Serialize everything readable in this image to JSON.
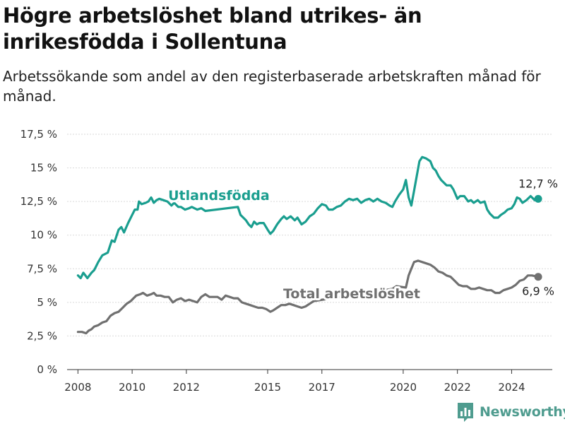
{
  "header": {
    "title": "Högre arbetslöshet bland utrikes- än inrikesfödda i Sollentuna",
    "subtitle": "Arbetssökande som andel av den registerbaserade arbetskraften månad för månad."
  },
  "brand": {
    "name": "Newsworthy",
    "icon": "bar-chart-logo-icon",
    "color": "#4f9c8f"
  },
  "chart_data": {
    "type": "line",
    "xlim": [
      2007.6,
      2025.5
    ],
    "ylim": [
      0,
      17.5
    ],
    "x_ticks": [
      {
        "value": 2008,
        "label": "2008"
      },
      {
        "value": 2010,
        "label": "2010"
      },
      {
        "value": 2012,
        "label": "2012"
      },
      {
        "value": 2015,
        "label": "2015"
      },
      {
        "value": 2017,
        "label": "2017"
      },
      {
        "value": 2020,
        "label": "2020"
      },
      {
        "value": 2022,
        "label": "2022"
      },
      {
        "value": 2024,
        "label": "2024"
      }
    ],
    "y_ticks": [
      {
        "value": 0,
        "label": "0 %"
      },
      {
        "value": 2.5,
        "label": "2,5 %"
      },
      {
        "value": 5,
        "label": "5 %"
      },
      {
        "value": 7.5,
        "label": "7,5 %"
      },
      {
        "value": 10,
        "label": "10 %"
      },
      {
        "value": 12.5,
        "label": "12,5 %"
      },
      {
        "value": 15,
        "label": "15 %"
      },
      {
        "value": 17.5,
        "label": "17,5 %"
      }
    ],
    "grid": "horizontal",
    "series": [
      {
        "name": "Utlandsfödda",
        "color": "#1a9e8f",
        "end_label": "12,7 %",
        "points": [
          [
            2008.0,
            7.0
          ],
          [
            2008.1,
            6.8
          ],
          [
            2008.2,
            7.2
          ],
          [
            2008.35,
            6.8
          ],
          [
            2008.5,
            7.2
          ],
          [
            2008.6,
            7.4
          ],
          [
            2008.75,
            8.0
          ],
          [
            2008.9,
            8.5
          ],
          [
            2009.1,
            8.7
          ],
          [
            2009.25,
            9.6
          ],
          [
            2009.35,
            9.5
          ],
          [
            2009.5,
            10.4
          ],
          [
            2009.6,
            10.6
          ],
          [
            2009.7,
            10.2
          ],
          [
            2009.85,
            10.9
          ],
          [
            2010.0,
            11.5
          ],
          [
            2010.1,
            11.9
          ],
          [
            2010.2,
            11.9
          ],
          [
            2010.25,
            12.5
          ],
          [
            2010.35,
            12.3
          ],
          [
            2010.5,
            12.4
          ],
          [
            2010.6,
            12.5
          ],
          [
            2010.7,
            12.8
          ],
          [
            2010.8,
            12.4
          ],
          [
            2010.9,
            12.6
          ],
          [
            2011.0,
            12.7
          ],
          [
            2011.15,
            12.6
          ],
          [
            2011.3,
            12.5
          ],
          [
            2011.45,
            12.2
          ],
          [
            2011.55,
            12.4
          ],
          [
            2011.7,
            12.1
          ],
          [
            2011.8,
            12.1
          ],
          [
            2011.95,
            11.9
          ],
          [
            2012.1,
            12.0
          ],
          [
            2012.2,
            12.1
          ],
          [
            2012.4,
            11.9
          ],
          [
            2012.55,
            12.0
          ],
          [
            2012.7,
            11.8
          ],
          [
            2013.9,
            12.1
          ],
          [
            2014.0,
            11.5
          ],
          [
            2014.1,
            11.3
          ],
          [
            2014.2,
            11.1
          ],
          [
            2014.3,
            10.8
          ],
          [
            2014.4,
            10.6
          ],
          [
            2014.5,
            11.0
          ],
          [
            2014.6,
            10.8
          ],
          [
            2014.7,
            10.9
          ],
          [
            2014.85,
            10.9
          ],
          [
            2015.0,
            10.4
          ],
          [
            2015.1,
            10.1
          ],
          [
            2015.2,
            10.3
          ],
          [
            2015.35,
            10.8
          ],
          [
            2015.5,
            11.2
          ],
          [
            2015.6,
            11.4
          ],
          [
            2015.7,
            11.2
          ],
          [
            2015.85,
            11.4
          ],
          [
            2016.0,
            11.1
          ],
          [
            2016.1,
            11.3
          ],
          [
            2016.25,
            10.8
          ],
          [
            2016.4,
            11.0
          ],
          [
            2016.55,
            11.4
          ],
          [
            2016.7,
            11.6
          ],
          [
            2016.85,
            12.0
          ],
          [
            2017.0,
            12.3
          ],
          [
            2017.15,
            12.2
          ],
          [
            2017.25,
            11.9
          ],
          [
            2017.4,
            11.9
          ],
          [
            2017.55,
            12.1
          ],
          [
            2017.7,
            12.2
          ],
          [
            2017.85,
            12.5
          ],
          [
            2018.0,
            12.7
          ],
          [
            2018.15,
            12.6
          ],
          [
            2018.3,
            12.7
          ],
          [
            2018.45,
            12.4
          ],
          [
            2018.6,
            12.6
          ],
          [
            2018.75,
            12.7
          ],
          [
            2018.9,
            12.5
          ],
          [
            2019.05,
            12.7
          ],
          [
            2019.2,
            12.5
          ],
          [
            2019.35,
            12.4
          ],
          [
            2019.5,
            12.2
          ],
          [
            2019.6,
            12.1
          ],
          [
            2019.7,
            12.5
          ],
          [
            2019.85,
            13.0
          ],
          [
            2020.0,
            13.4
          ],
          [
            2020.1,
            14.1
          ],
          [
            2020.2,
            12.8
          ],
          [
            2020.3,
            12.2
          ],
          [
            2020.4,
            13.3
          ],
          [
            2020.5,
            14.4
          ],
          [
            2020.6,
            15.5
          ],
          [
            2020.7,
            15.8
          ],
          [
            2020.85,
            15.7
          ],
          [
            2021.0,
            15.5
          ],
          [
            2021.1,
            15.0
          ],
          [
            2021.2,
            14.8
          ],
          [
            2021.3,
            14.4
          ],
          [
            2021.4,
            14.1
          ],
          [
            2021.5,
            13.9
          ],
          [
            2021.6,
            13.7
          ],
          [
            2021.75,
            13.7
          ],
          [
            2021.85,
            13.4
          ],
          [
            2022.0,
            12.7
          ],
          [
            2022.1,
            12.9
          ],
          [
            2022.25,
            12.9
          ],
          [
            2022.4,
            12.5
          ],
          [
            2022.5,
            12.6
          ],
          [
            2022.6,
            12.4
          ],
          [
            2022.75,
            12.6
          ],
          [
            2022.85,
            12.4
          ],
          [
            2023.0,
            12.5
          ],
          [
            2023.1,
            11.9
          ],
          [
            2023.2,
            11.6
          ],
          [
            2023.35,
            11.3
          ],
          [
            2023.5,
            11.3
          ],
          [
            2023.6,
            11.5
          ],
          [
            2023.75,
            11.7
          ],
          [
            2023.85,
            11.9
          ],
          [
            2024.0,
            12.0
          ],
          [
            2024.1,
            12.3
          ],
          [
            2024.2,
            12.8
          ],
          [
            2024.3,
            12.7
          ],
          [
            2024.4,
            12.4
          ],
          [
            2024.55,
            12.6
          ],
          [
            2024.7,
            12.9
          ],
          [
            2024.85,
            12.6
          ],
          [
            2024.98,
            12.7
          ]
        ]
      },
      {
        "name": "Total arbetslöshet",
        "color": "#707070",
        "end_label": "6,9 %",
        "points": [
          [
            2008.0,
            2.8
          ],
          [
            2008.15,
            2.8
          ],
          [
            2008.3,
            2.7
          ],
          [
            2008.4,
            2.9
          ],
          [
            2008.5,
            3.0
          ],
          [
            2008.6,
            3.2
          ],
          [
            2008.75,
            3.3
          ],
          [
            2008.9,
            3.5
          ],
          [
            2009.05,
            3.6
          ],
          [
            2009.2,
            4.0
          ],
          [
            2009.35,
            4.2
          ],
          [
            2009.5,
            4.3
          ],
          [
            2009.65,
            4.6
          ],
          [
            2009.8,
            4.9
          ],
          [
            2009.95,
            5.1
          ],
          [
            2010.05,
            5.3
          ],
          [
            2010.15,
            5.5
          ],
          [
            2010.3,
            5.6
          ],
          [
            2010.4,
            5.7
          ],
          [
            2010.55,
            5.5
          ],
          [
            2010.7,
            5.6
          ],
          [
            2010.8,
            5.7
          ],
          [
            2010.9,
            5.5
          ],
          [
            2011.05,
            5.5
          ],
          [
            2011.2,
            5.4
          ],
          [
            2011.35,
            5.4
          ],
          [
            2011.5,
            5.0
          ],
          [
            2011.65,
            5.2
          ],
          [
            2011.8,
            5.3
          ],
          [
            2011.95,
            5.1
          ],
          [
            2012.1,
            5.2
          ],
          [
            2012.25,
            5.1
          ],
          [
            2012.4,
            5.0
          ],
          [
            2012.55,
            5.4
          ],
          [
            2012.7,
            5.6
          ],
          [
            2012.85,
            5.4
          ],
          [
            2013.0,
            5.4
          ],
          [
            2013.15,
            5.4
          ],
          [
            2013.3,
            5.2
          ],
          [
            2013.45,
            5.5
          ],
          [
            2013.6,
            5.4
          ],
          [
            2013.75,
            5.3
          ],
          [
            2013.9,
            5.3
          ],
          [
            2014.05,
            5.0
          ],
          [
            2014.2,
            4.9
          ],
          [
            2014.35,
            4.8
          ],
          [
            2014.5,
            4.7
          ],
          [
            2014.65,
            4.6
          ],
          [
            2014.8,
            4.6
          ],
          [
            2014.95,
            4.5
          ],
          [
            2015.1,
            4.3
          ],
          [
            2015.2,
            4.4
          ],
          [
            2015.35,
            4.6
          ],
          [
            2015.5,
            4.8
          ],
          [
            2015.65,
            4.8
          ],
          [
            2015.8,
            4.9
          ],
          [
            2015.95,
            4.8
          ],
          [
            2016.1,
            4.7
          ],
          [
            2016.25,
            4.6
          ],
          [
            2016.4,
            4.7
          ],
          [
            2016.55,
            4.9
          ],
          [
            2016.7,
            5.1
          ],
          [
            2019.6,
            6.0
          ],
          [
            2019.75,
            6.2
          ],
          [
            2020.1,
            6.1
          ],
          [
            2020.2,
            7.0
          ],
          [
            2020.3,
            7.5
          ],
          [
            2020.4,
            8.0
          ],
          [
            2020.55,
            8.1
          ],
          [
            2020.7,
            8.0
          ],
          [
            2020.85,
            7.9
          ],
          [
            2021.0,
            7.8
          ],
          [
            2021.15,
            7.6
          ],
          [
            2021.3,
            7.3
          ],
          [
            2021.45,
            7.2
          ],
          [
            2021.6,
            7.0
          ],
          [
            2021.75,
            6.9
          ],
          [
            2021.9,
            6.6
          ],
          [
            2022.05,
            6.3
          ],
          [
            2022.2,
            6.2
          ],
          [
            2022.35,
            6.2
          ],
          [
            2022.5,
            6.0
          ],
          [
            2022.65,
            6.0
          ],
          [
            2022.8,
            6.1
          ],
          [
            2022.95,
            6.0
          ],
          [
            2023.1,
            5.9
          ],
          [
            2023.25,
            5.9
          ],
          [
            2023.4,
            5.7
          ],
          [
            2023.55,
            5.7
          ],
          [
            2023.7,
            5.9
          ],
          [
            2023.85,
            6.0
          ],
          [
            2024.0,
            6.1
          ],
          [
            2024.15,
            6.3
          ],
          [
            2024.3,
            6.6
          ],
          [
            2024.45,
            6.7
          ],
          [
            2024.6,
            7.0
          ],
          [
            2024.75,
            7.0
          ],
          [
            2024.98,
            6.9
          ]
        ]
      }
    ],
    "annotations": [
      {
        "text": "Utlandsfödda",
        "x": 2013.2,
        "y": 12.6,
        "color": "#1a9e8f"
      },
      {
        "text": "Total arbetslöshet",
        "x": 2018.1,
        "y": 5.3,
        "color": "#707070"
      }
    ]
  }
}
